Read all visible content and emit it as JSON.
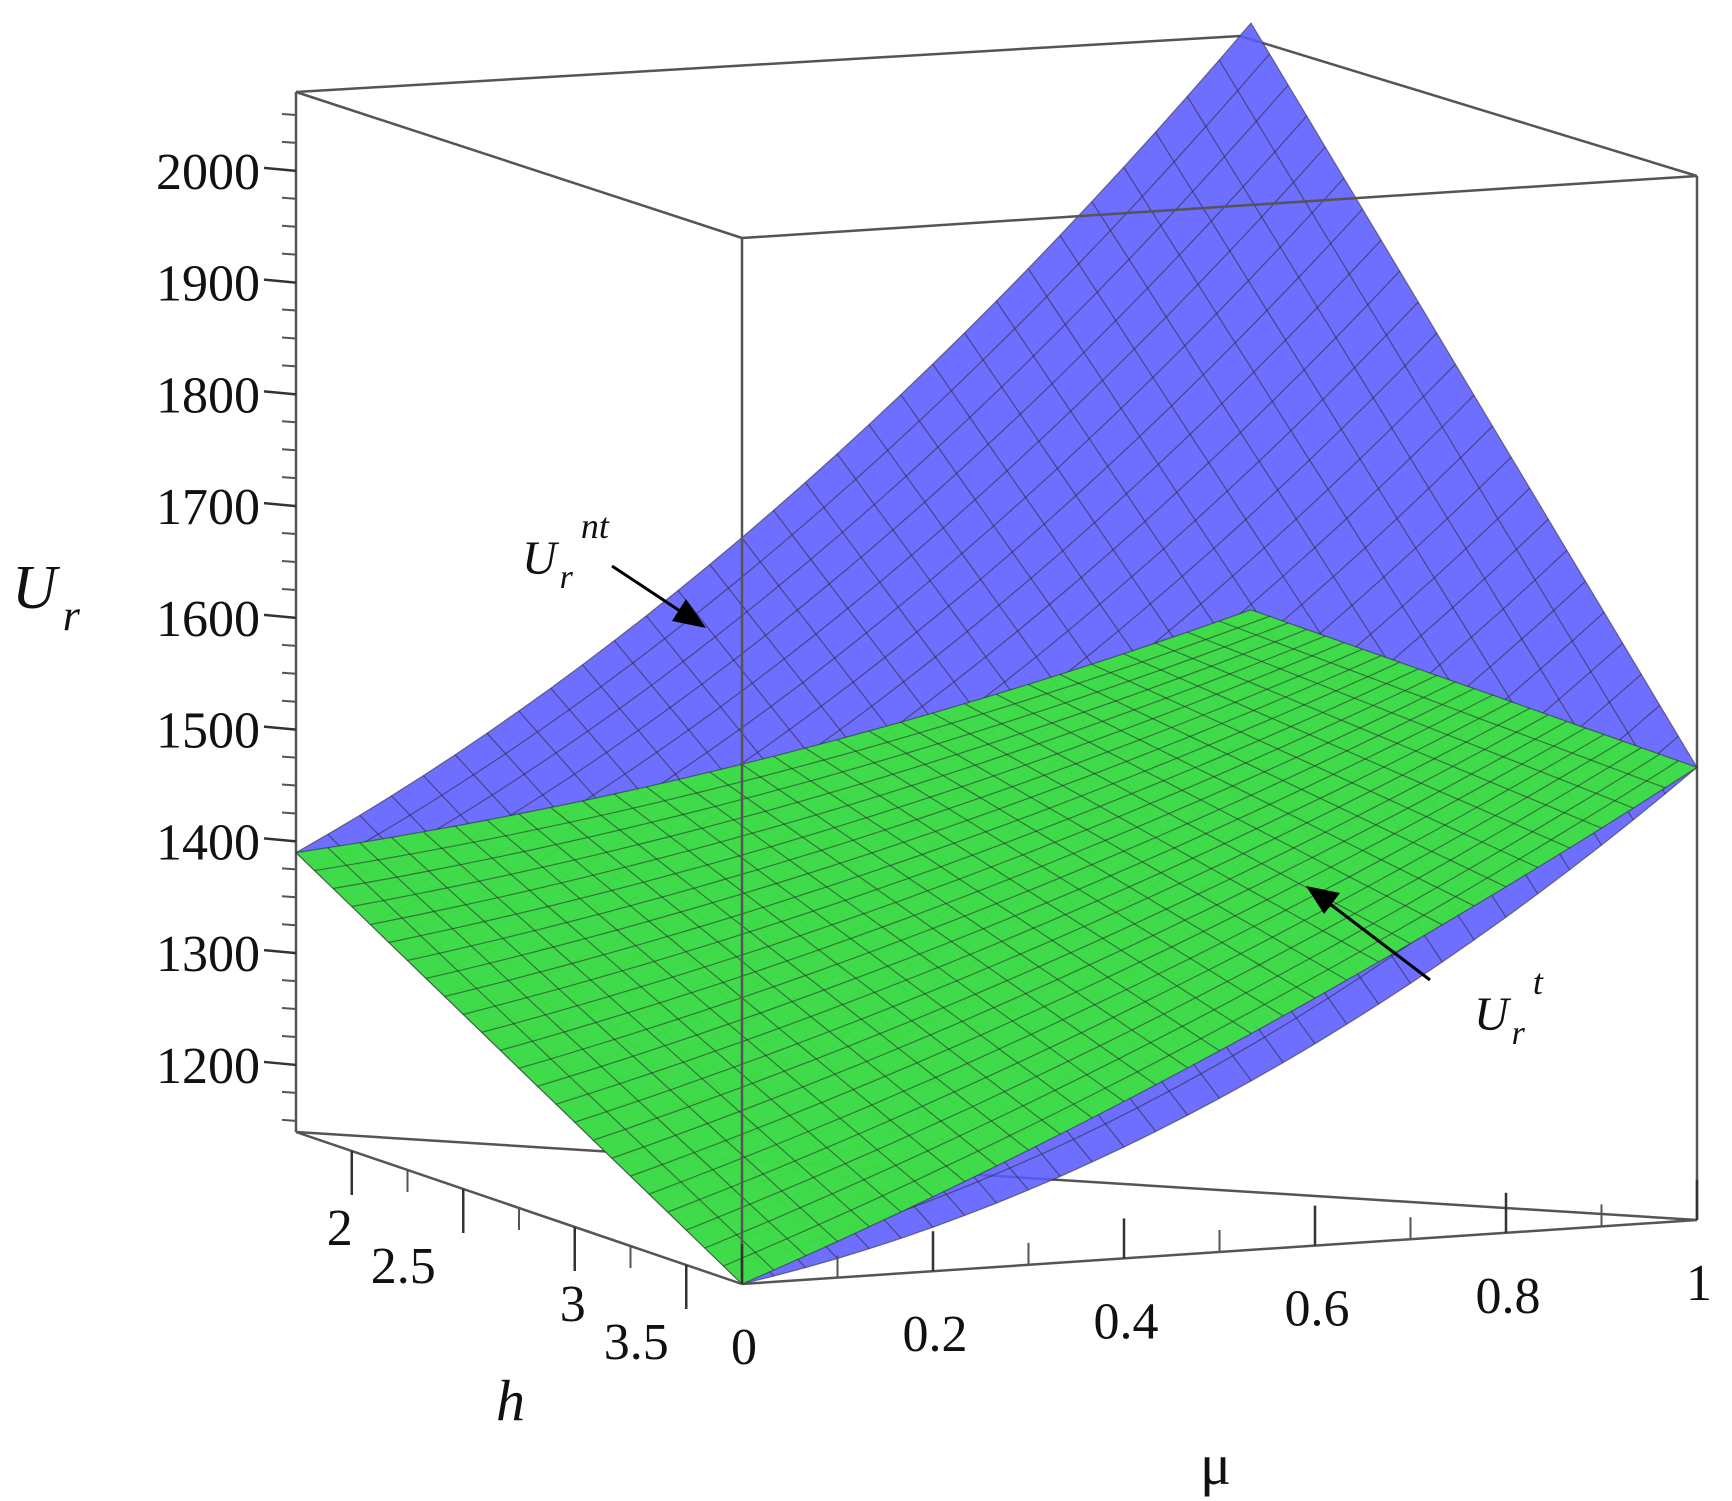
{
  "chart_data": {
    "type": "surface3d",
    "title": "",
    "axes": {
      "mu": {
        "label": "μ",
        "range": [
          0,
          1
        ],
        "ticks": [
          "0",
          "0.2",
          "0.4",
          "0.6",
          "0.8",
          "1"
        ]
      },
      "h": {
        "label": "h",
        "range": [
          1.75,
          3.75
        ],
        "ticks": [
          "2",
          "2.5",
          "3",
          "3.5"
        ]
      },
      "z": {
        "label_base": "U",
        "label_sub": "r",
        "range": [
          1140,
          2075
        ],
        "ticks": [
          "1200",
          "1300",
          "1400",
          "1500",
          "1600",
          "1700",
          "1800",
          "1900",
          "2000"
        ]
      }
    },
    "series": [
      {
        "name": "nt",
        "label_base": "U",
        "label_sub": "r",
        "label_sup": "nt",
        "color": "#5a5aff",
        "corners": {
          "mu0_hmin": 1390,
          "mu0_hmax": 1140,
          "mu1_hmin": 2075,
          "mu1_hmax": 1545
        }
      },
      {
        "name": "t",
        "label_base": "U",
        "label_sub": "r",
        "label_sup": "t",
        "color": "#3ce43c",
        "corners": {
          "mu0_hmin": 1390,
          "mu0_hmax": 1140,
          "mu1_hmin": 1550,
          "mu1_hmax": 1545
        }
      }
    ],
    "grid": false,
    "legend": "annotations"
  }
}
